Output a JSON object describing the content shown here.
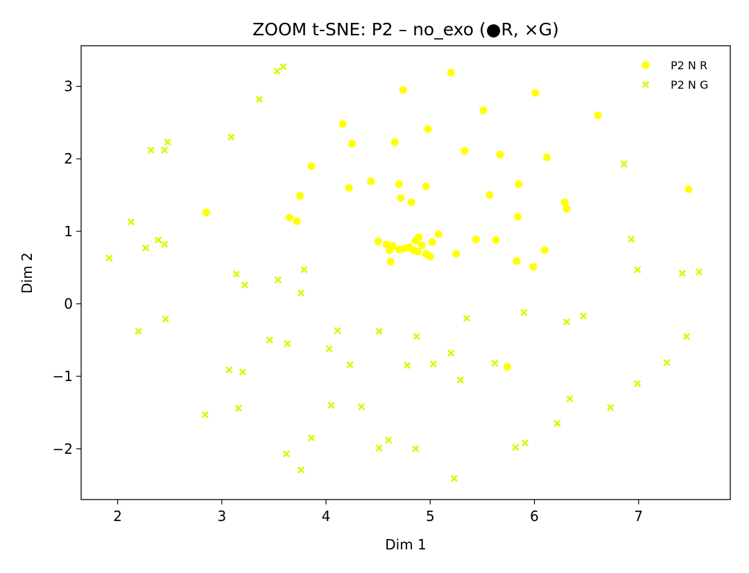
{
  "chart_data": {
    "type": "scatter",
    "title": "ZOOM t-SNE: P2 – no_exo (●R, ×G)",
    "xlabel": "Dim 1",
    "ylabel": "Dim 2",
    "xlim": [
      1.65,
      7.88
    ],
    "ylim": [
      -2.7,
      3.56
    ],
    "xticks": [
      2,
      3,
      4,
      5,
      6,
      7
    ],
    "yticks": [
      -2,
      -1,
      0,
      1,
      2,
      3
    ],
    "xtick_labels": [
      "2",
      "3",
      "4",
      "5",
      "6",
      "7"
    ],
    "ytick_labels": [
      "−2",
      "−1",
      "0",
      "1",
      "2",
      "3"
    ],
    "grid": false,
    "legend_position": "top-right",
    "series": [
      {
        "name": "P2 N R",
        "marker": "circle",
        "color": "#ffff00",
        "points": [
          [
            5.2,
            3.19
          ],
          [
            4.74,
            2.95
          ],
          [
            6.01,
            2.91
          ],
          [
            5.51,
            2.67
          ],
          [
            6.61,
            2.6
          ],
          [
            4.16,
            2.48
          ],
          [
            4.98,
            2.41
          ],
          [
            4.25,
            2.21
          ],
          [
            4.66,
            2.23
          ],
          [
            5.33,
            2.11
          ],
          [
            5.67,
            2.06
          ],
          [
            6.12,
            2.02
          ],
          [
            3.86,
            1.9
          ],
          [
            4.43,
            1.69
          ],
          [
            4.7,
            1.65
          ],
          [
            4.96,
            1.62
          ],
          [
            5.85,
            1.65
          ],
          [
            4.22,
            1.6
          ],
          [
            5.57,
            1.5
          ],
          [
            3.75,
            1.49
          ],
          [
            4.72,
            1.46
          ],
          [
            4.82,
            1.4
          ],
          [
            6.29,
            1.4
          ],
          [
            6.31,
            1.31
          ],
          [
            7.48,
            1.58
          ],
          [
            2.85,
            1.26
          ],
          [
            3.65,
            1.19
          ],
          [
            3.72,
            1.14
          ],
          [
            5.84,
            1.2
          ],
          [
            5.08,
            0.96
          ],
          [
            4.5,
            0.86
          ],
          [
            4.58,
            0.82
          ],
          [
            4.64,
            0.8
          ],
          [
            4.89,
            0.92
          ],
          [
            4.86,
            0.87
          ],
          [
            4.92,
            0.81
          ],
          [
            5.02,
            0.85
          ],
          [
            5.44,
            0.89
          ],
          [
            5.63,
            0.88
          ],
          [
            4.61,
            0.74
          ],
          [
            4.7,
            0.75
          ],
          [
            4.75,
            0.76
          ],
          [
            4.8,
            0.78
          ],
          [
            4.84,
            0.74
          ],
          [
            4.88,
            0.72
          ],
          [
            4.96,
            0.69
          ],
          [
            5.0,
            0.65
          ],
          [
            5.25,
            0.69
          ],
          [
            4.62,
            0.58
          ],
          [
            5.83,
            0.59
          ],
          [
            5.99,
            0.51
          ],
          [
            6.1,
            0.74
          ],
          [
            5.74,
            -0.87
          ]
        ]
      },
      {
        "name": "P2 N G",
        "marker": "x",
        "color": "#ccff00",
        "points": [
          [
            3.59,
            3.27
          ],
          [
            3.53,
            3.21
          ],
          [
            3.36,
            2.82
          ],
          [
            3.09,
            2.3
          ],
          [
            2.48,
            2.23
          ],
          [
            2.32,
            2.12
          ],
          [
            2.45,
            2.12
          ],
          [
            6.86,
            1.93
          ],
          [
            2.13,
            1.13
          ],
          [
            2.39,
            0.88
          ],
          [
            2.45,
            0.82
          ],
          [
            2.27,
            0.77
          ],
          [
            6.93,
            0.89
          ],
          [
            1.92,
            0.63
          ],
          [
            3.79,
            0.47
          ],
          [
            6.99,
            0.47
          ],
          [
            7.42,
            0.42
          ],
          [
            7.58,
            0.44
          ],
          [
            3.14,
            0.41
          ],
          [
            3.22,
            0.26
          ],
          [
            3.54,
            0.33
          ],
          [
            3.76,
            0.15
          ],
          [
            5.9,
            -0.12
          ],
          [
            5.35,
            -0.2
          ],
          [
            6.47,
            -0.17
          ],
          [
            6.31,
            -0.25
          ],
          [
            2.46,
            -0.21
          ],
          [
            2.2,
            -0.38
          ],
          [
            4.11,
            -0.37
          ],
          [
            4.51,
            -0.38
          ],
          [
            7.46,
            -0.45
          ],
          [
            4.87,
            -0.45
          ],
          [
            3.46,
            -0.5
          ],
          [
            3.63,
            -0.55
          ],
          [
            4.03,
            -0.62
          ],
          [
            5.2,
            -0.68
          ],
          [
            4.23,
            -0.84
          ],
          [
            4.78,
            -0.85
          ],
          [
            5.03,
            -0.83
          ],
          [
            5.62,
            -0.82
          ],
          [
            7.27,
            -0.81
          ],
          [
            3.07,
            -0.91
          ],
          [
            3.2,
            -0.94
          ],
          [
            5.29,
            -1.05
          ],
          [
            6.99,
            -1.1
          ],
          [
            6.34,
            -1.31
          ],
          [
            4.05,
            -1.4
          ],
          [
            4.34,
            -1.42
          ],
          [
            3.16,
            -1.44
          ],
          [
            6.73,
            -1.43
          ],
          [
            2.84,
            -1.53
          ],
          [
            6.22,
            -1.65
          ],
          [
            3.86,
            -1.85
          ],
          [
            4.6,
            -1.88
          ],
          [
            5.91,
            -1.92
          ],
          [
            4.51,
            -1.99
          ],
          [
            4.86,
            -2.0
          ],
          [
            5.82,
            -1.98
          ],
          [
            3.62,
            -2.07
          ],
          [
            3.76,
            -2.29
          ],
          [
            5.23,
            -2.41
          ]
        ]
      }
    ]
  }
}
